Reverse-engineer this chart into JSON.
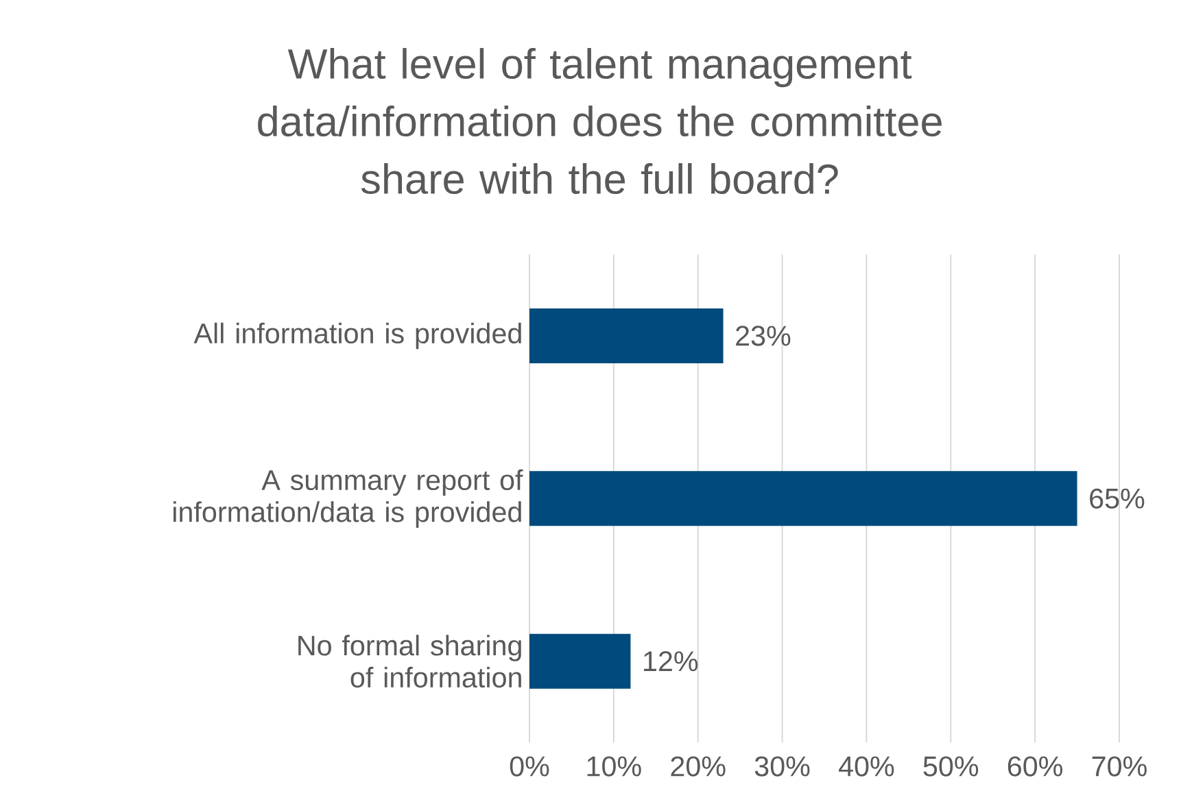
{
  "chart_data": {
    "type": "bar",
    "orientation": "horizontal",
    "title": "What level of talent management data/information does the committee share with the full board?",
    "categories": [
      "All information is provided",
      "A summary report of information/data is provided",
      "No formal sharing of information"
    ],
    "values": [
      23,
      65,
      12
    ],
    "value_labels": [
      "23%",
      "65%",
      "12%"
    ],
    "color": "#004b7c",
    "xlim": [
      0,
      70
    ],
    "xticks": [
      {
        "value": 0,
        "label": "0%"
      },
      {
        "value": 10,
        "label": "10%"
      },
      {
        "value": 20,
        "label": "20%"
      },
      {
        "value": 30,
        "label": "30%"
      },
      {
        "value": 40,
        "label": "40%"
      },
      {
        "value": 50,
        "label": "50%"
      },
      {
        "value": 60,
        "label": "60%"
      },
      {
        "value": 70,
        "label": "70%"
      }
    ],
    "grid": "x"
  }
}
